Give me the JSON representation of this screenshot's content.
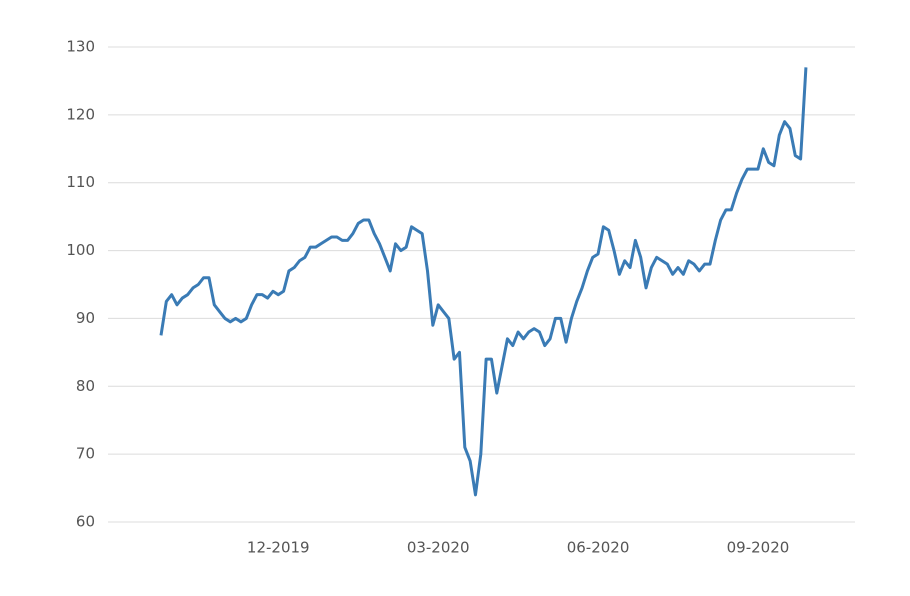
{
  "chart_data": {
    "type": "line",
    "categories": [
      null,
      null,
      null,
      null,
      null,
      null,
      null,
      null,
      null,
      null,
      null,
      null,
      null,
      null,
      null,
      null,
      null,
      null,
      null,
      null,
      null,
      null,
      "12-2019",
      null,
      null,
      null,
      null,
      null,
      null,
      null,
      null,
      null,
      null,
      null,
      null,
      null,
      null,
      null,
      null,
      null,
      null,
      null,
      null,
      null,
      null,
      null,
      null,
      null,
      null,
      null,
      null,
      null,
      "03-2020",
      null,
      null,
      null,
      null,
      null,
      null,
      null,
      null,
      null,
      null,
      null,
      null,
      null,
      null,
      null,
      null,
      null,
      null,
      null,
      null,
      null,
      null,
      null,
      null,
      null,
      null,
      null,
      null,
      null,
      "06-2020",
      null,
      null,
      null,
      null,
      null,
      null,
      null,
      null,
      null,
      null,
      null,
      null,
      null,
      null,
      null,
      null,
      null,
      null,
      null,
      null,
      null,
      null,
      null,
      null,
      null,
      null,
      null,
      null,
      null,
      "09-2020",
      null,
      null,
      null,
      null,
      null,
      null,
      null,
      null,
      null
    ],
    "series": [
      {
        "color": "#3a7bb5",
        "values": [
          87.5,
          92.5,
          93.5,
          92,
          93,
          93.5,
          94.5,
          95,
          96,
          96,
          92,
          91,
          90,
          89.5,
          90,
          89.5,
          90,
          92,
          93.5,
          93.5,
          93,
          94,
          93.5,
          94,
          97,
          97.5,
          98.5,
          99,
          100.5,
          100.5,
          101,
          101.5,
          102,
          102,
          101.5,
          101.5,
          102.5,
          104,
          104.5,
          104.5,
          102.5,
          101,
          99,
          97,
          101,
          100,
          100.5,
          103.5,
          103,
          102.5,
          97,
          89,
          92,
          91,
          90,
          84,
          85,
          71,
          69,
          64,
          70,
          84,
          84,
          79,
          83,
          87,
          86,
          88,
          87,
          88,
          88.5,
          88,
          86,
          87,
          90,
          90,
          86.5,
          90,
          92.5,
          94.5,
          97,
          99,
          99.5,
          103.5,
          103,
          100,
          96.5,
          98.5,
          97.5,
          101.5,
          99,
          94.5,
          97.5,
          99,
          98.5,
          98,
          96.5,
          97.5,
          96.5,
          98.5,
          98,
          97,
          98,
          98,
          101.5,
          104.5,
          106,
          106,
          108.5,
          110.5,
          112,
          112,
          112,
          115,
          113,
          112.5,
          117,
          119,
          118,
          114,
          113.5,
          127
        ]
      }
    ],
    "ylim": [
      60,
      130
    ],
    "yticks": [
      60,
      70,
      80,
      90,
      100,
      110,
      120,
      130
    ],
    "grid": true
  }
}
